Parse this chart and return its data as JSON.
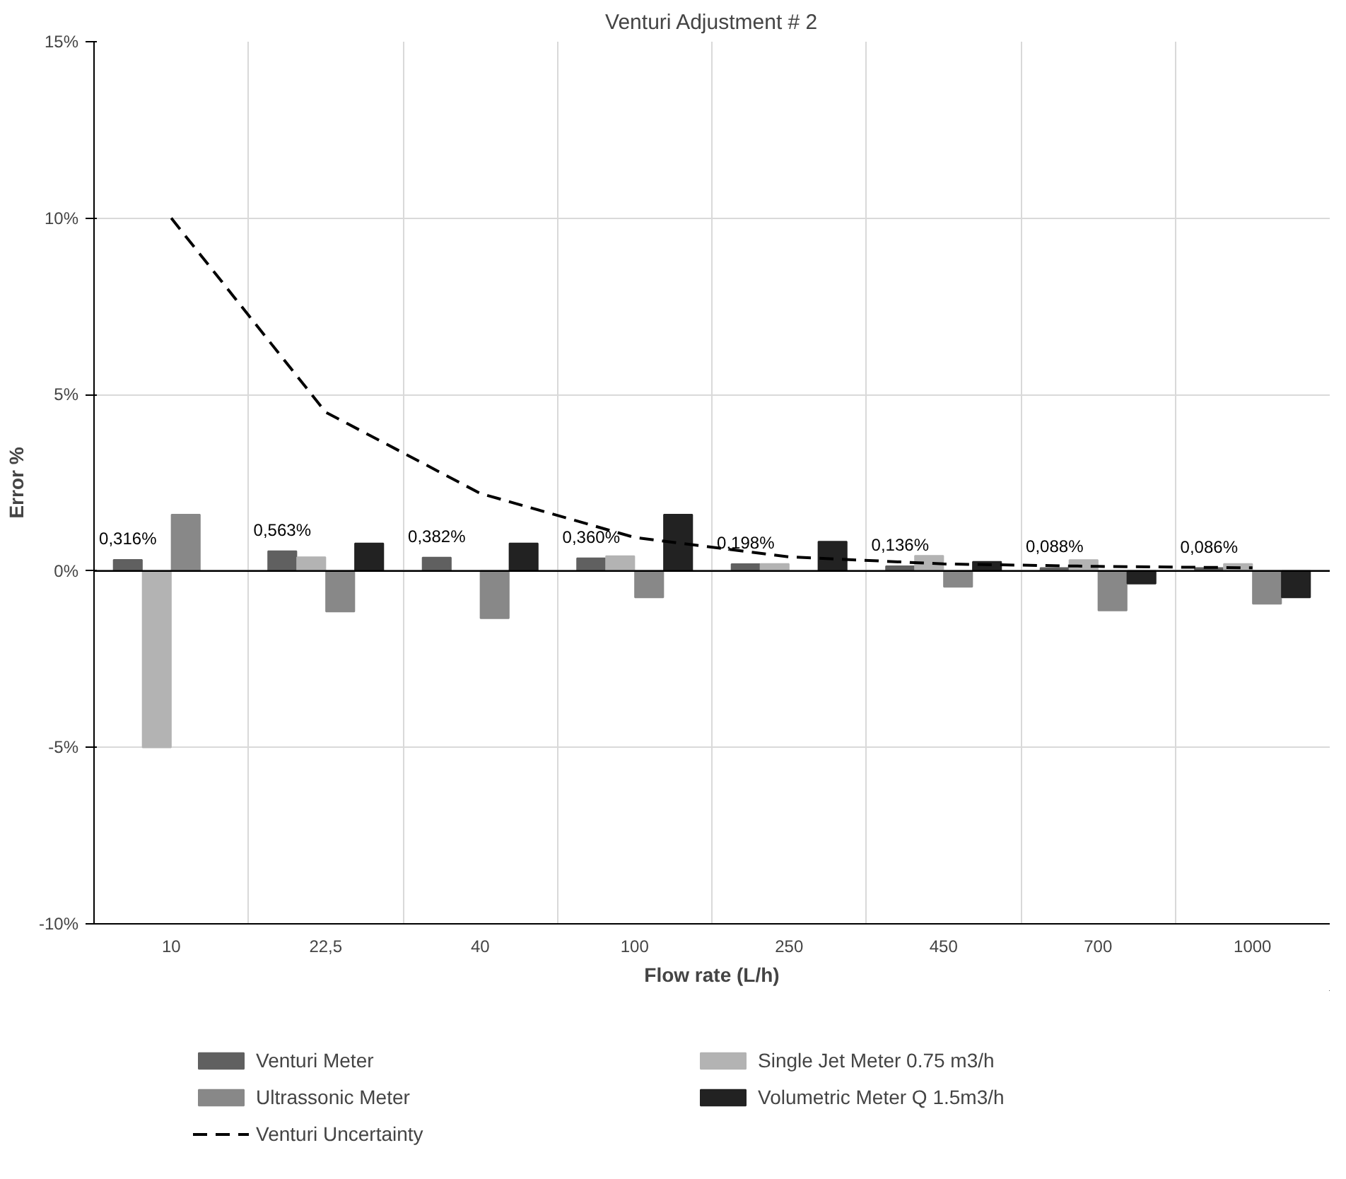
{
  "chart_data": {
    "type": "bar",
    "title": "Venturi Adjustment # 2",
    "xlabel": "Flow rate (L/h)",
    "ylabel": "Error %",
    "categories": [
      "10",
      "22,5",
      "40",
      "100",
      "250",
      "450",
      "700",
      "1000"
    ],
    "ylim": [
      -10,
      15
    ],
    "yticks": [
      {
        "value": -10,
        "label": "-10%"
      },
      {
        "value": -5,
        "label": "-5%"
      },
      {
        "value": 0,
        "label": "0%"
      },
      {
        "value": 5,
        "label": "5%"
      },
      {
        "value": 10,
        "label": "10%"
      },
      {
        "value": 15,
        "label": "15%"
      }
    ],
    "grid": true,
    "legend": "bottom",
    "series": [
      {
        "name": "Venturi Meter",
        "color": "#606060",
        "values": [
          0.316,
          0.563,
          0.382,
          0.36,
          0.198,
          0.136,
          0.088,
          0.086
        ],
        "value_labels": [
          "0,316%",
          "0,563%",
          "0,382%",
          "0,360%",
          "0,198%",
          "0,136%",
          "0,088%",
          "0,086%"
        ]
      },
      {
        "name": "Single Jet Meter 0.75 m3/h",
        "color": "#b3b3b3",
        "values": [
          -5.0,
          0.39,
          null,
          0.42,
          0.2,
          0.43,
          0.31,
          0.2
        ]
      },
      {
        "name": "Ultrassonic Meter",
        "color": "#888888",
        "values": [
          1.6,
          -1.15,
          -1.34,
          -0.75,
          null,
          -0.45,
          -1.12,
          -0.93
        ]
      },
      {
        "name": "Volumetric Meter Q 1.5m3/h",
        "color": "#222222",
        "values": [
          null,
          0.78,
          0.78,
          1.6,
          0.83,
          0.26,
          -0.36,
          -0.75
        ]
      },
      {
        "name": "Venturi Uncertainty",
        "type": "line",
        "line_style": "dashed",
        "color": "#000000",
        "values": [
          10,
          4.5,
          2.2,
          0.95,
          0.4,
          0.2,
          0.13,
          0.09
        ]
      }
    ]
  }
}
